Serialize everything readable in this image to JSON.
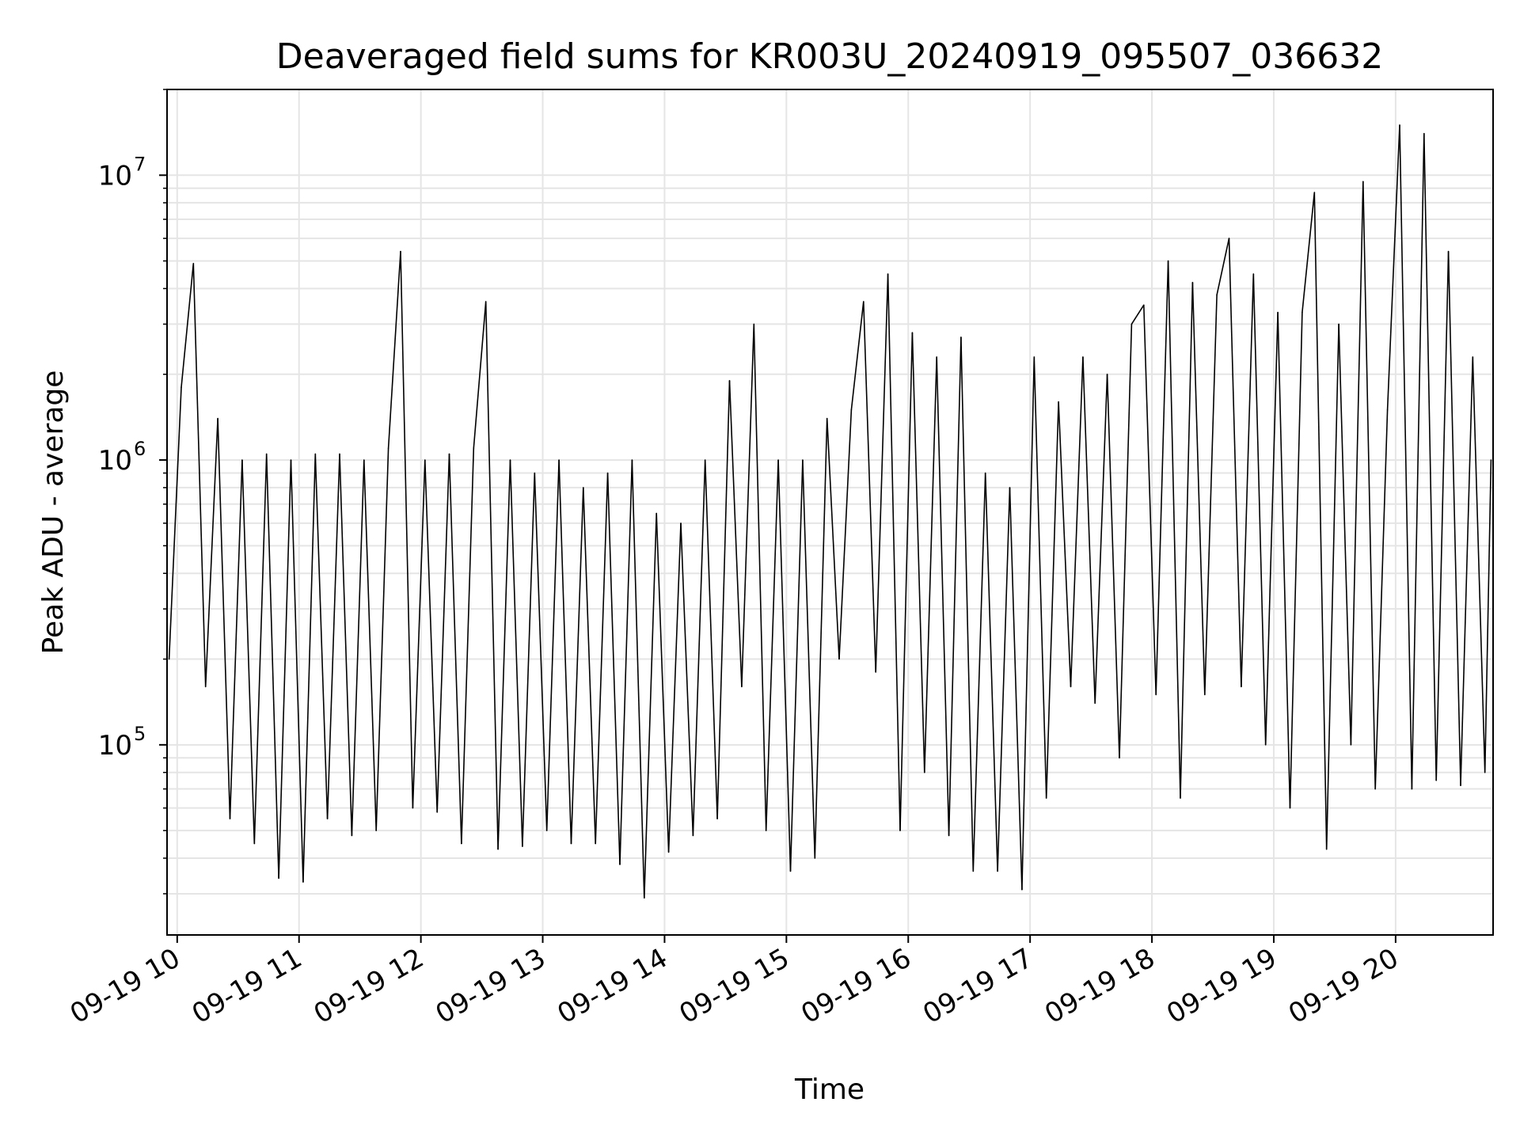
{
  "chart_data": {
    "type": "line",
    "title": "Deaveraged field sums for KR003U_20240919_095507_036632",
    "xlabel": "Time",
    "ylabel": "Peak ADU - average",
    "yscale": "log",
    "grid": true,
    "xlim": [
      "2024-09-19 09:55",
      "2024-09-19 20:48"
    ],
    "ylim": [
      21500,
      20000000
    ],
    "xticks": [
      {
        "label": "09-19 10",
        "value": "2024-09-19 10:00"
      },
      {
        "label": "09-19 11",
        "value": "2024-09-19 11:00"
      },
      {
        "label": "09-19 12",
        "value": "2024-09-19 12:00"
      },
      {
        "label": "09-19 13",
        "value": "2024-09-19 13:00"
      },
      {
        "label": "09-19 14",
        "value": "2024-09-19 14:00"
      },
      {
        "label": "09-19 15",
        "value": "2024-09-19 15:00"
      },
      {
        "label": "09-19 16",
        "value": "2024-09-19 16:00"
      },
      {
        "label": "09-19 17",
        "value": "2024-09-19 17:00"
      },
      {
        "label": "09-19 18",
        "value": "2024-09-19 18:00"
      },
      {
        "label": "09-19 19",
        "value": "2024-09-19 19:00"
      },
      {
        "label": "09-19 20",
        "value": "2024-09-19 20:00"
      }
    ],
    "yticks": [
      {
        "base": "10",
        "exp": "5",
        "value": 100000
      },
      {
        "base": "10",
        "exp": "6",
        "value": 1000000
      },
      {
        "base": "10",
        "exp": "7",
        "value": 10000000
      }
    ],
    "line_color": "#000000",
    "x": [
      "09:56",
      "10:02",
      "10:08",
      "10:14",
      "10:20",
      "10:26",
      "10:32",
      "10:38",
      "10:44",
      "10:50",
      "10:56",
      "11:02",
      "11:08",
      "11:14",
      "11:20",
      "11:26",
      "11:32",
      "11:38",
      "11:44",
      "11:50",
      "11:56",
      "12:02",
      "12:08",
      "12:14",
      "12:20",
      "12:26",
      "12:32",
      "12:38",
      "12:44",
      "12:50",
      "12:56",
      "13:02",
      "13:08",
      "13:14",
      "13:20",
      "13:26",
      "13:32",
      "13:38",
      "13:44",
      "13:50",
      "13:56",
      "14:02",
      "14:08",
      "14:14",
      "14:20",
      "14:26",
      "14:32",
      "14:38",
      "14:44",
      "14:50",
      "14:56",
      "15:02",
      "15:08",
      "15:14",
      "15:20",
      "15:26",
      "15:32",
      "15:38",
      "15:44",
      "15:50",
      "15:56",
      "16:02",
      "16:08",
      "16:14",
      "16:20",
      "16:26",
      "16:32",
      "16:38",
      "16:44",
      "16:50",
      "16:56",
      "17:02",
      "17:08",
      "17:14",
      "17:20",
      "17:26",
      "17:32",
      "17:38",
      "17:44",
      "17:50",
      "17:56",
      "18:02",
      "18:08",
      "18:14",
      "18:20",
      "18:26",
      "18:32",
      "18:38",
      "18:44",
      "18:50",
      "18:56",
      "19:02",
      "19:08",
      "19:14",
      "19:20",
      "19:26",
      "19:32",
      "19:38",
      "19:44",
      "19:50",
      "19:56",
      "20:02",
      "20:08",
      "20:14",
      "20:20",
      "20:26",
      "20:32",
      "20:38",
      "20:44",
      "20:47"
    ],
    "values": [
      200000,
      1800000,
      4900000,
      160000,
      1400000,
      55000,
      1000000,
      45000,
      1050000,
      34000,
      1000000,
      33000,
      1050000,
      55000,
      1050000,
      48000,
      1000000,
      50000,
      1100000,
      5400000,
      60000,
      1000000,
      58000,
      1050000,
      45000,
      1100000,
      3600000,
      43000,
      1000000,
      44000,
      900000,
      50000,
      1000000,
      45000,
      800000,
      45000,
      900000,
      38000,
      1000000,
      29000,
      650000,
      42000,
      600000,
      48000,
      1000000,
      55000,
      1900000,
      160000,
      3000000,
      50000,
      1000000,
      36000,
      1000000,
      40000,
      1400000,
      200000,
      1500000,
      3600000,
      180000,
      4500000,
      50000,
      2800000,
      80000,
      2300000,
      48000,
      2700000,
      36000,
      900000,
      36000,
      800000,
      31000,
      2300000,
      65000,
      1600000,
      160000,
      2300000,
      140000,
      2000000,
      90000,
      3000000,
      3500000,
      150000,
      5000000,
      65000,
      4200000,
      150000,
      3800000,
      6000000,
      160000,
      4500000,
      100000,
      3300000,
      60000,
      3300000,
      8700000,
      43000,
      3000000,
      100000,
      9500000,
      70000,
      1500000,
      15000000,
      70000,
      14000000,
      75000,
      5400000,
      72000,
      2300000,
      80000,
      1000000
    ]
  }
}
